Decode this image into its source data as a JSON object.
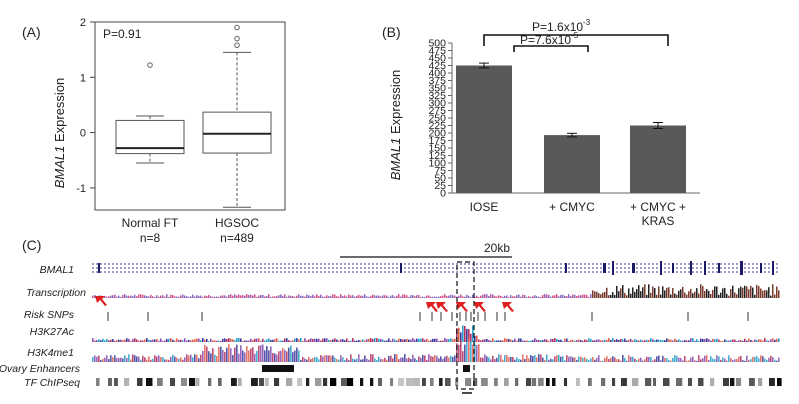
{
  "panels": {
    "A": {
      "label": "(A)",
      "pvalue": "P=0.91",
      "ylabel_gene": "BMAL1",
      "ylabel_rest": " Expression",
      "ytick_labels": [
        "2",
        "1",
        "0",
        "-1"
      ],
      "groups": [
        {
          "name": "Normal FT",
          "n": "n=8"
        },
        {
          "name": "HGSOC",
          "n": "n=489"
        }
      ]
    },
    "B": {
      "label": "(B)",
      "ylabel_gene": "BMAL1",
      "ylabel_rest": " Expression",
      "brackets": [
        {
          "text": "P=7.6x10",
          "exp": "-5"
        },
        {
          "text": "P=1.6x10",
          "exp": "-3"
        }
      ],
      "categories": [
        "IOSE",
        "+ CMYC",
        "+ CMYC +",
        "KRAS"
      ]
    },
    "C": {
      "label": "(C)",
      "scale_label": "20kb",
      "tracks": [
        "BMAL1",
        "Transcription",
        "Risk SNPs",
        "H3K27Ac",
        "H3K4me1",
        "Ovary Enhancers",
        "TF ChIPseq"
      ]
    }
  },
  "chart_data": [
    {
      "type": "box",
      "title": "",
      "ylabel": "BMAL1 Expression",
      "ylim": [
        -1.4,
        2
      ],
      "yticks": [
        -1,
        0,
        1,
        2
      ],
      "annotation": "P=0.91",
      "groups": [
        {
          "name": "Normal FT",
          "n": 8,
          "min": -0.55,
          "q1": -0.38,
          "median": -0.28,
          "q3": 0.22,
          "max": 0.3,
          "outliers": [
            1.22
          ]
        },
        {
          "name": "HGSOC",
          "n": 489,
          "min": -1.35,
          "q1": -0.37,
          "median": -0.02,
          "q3": 0.37,
          "max": 1.45,
          "outliers": [
            1.58,
            1.7,
            1.9
          ]
        }
      ]
    },
    {
      "type": "bar",
      "title": "",
      "ylabel": "BMAL1 Expression",
      "ylim": [
        0,
        500
      ],
      "yticks": [
        0,
        25,
        50,
        75,
        100,
        125,
        150,
        175,
        200,
        225,
        250,
        275,
        300,
        325,
        350,
        375,
        400,
        425,
        450,
        475,
        500
      ],
      "categories": [
        "IOSE",
        "+ CMYC",
        "+ CMYC + KRAS"
      ],
      "values": [
        425,
        193,
        225
      ],
      "errors": [
        8,
        6,
        10
      ],
      "color": "#595959",
      "annotations": [
        {
          "between": [
            "IOSE",
            "+ CMYC"
          ],
          "text": "P=7.6x10-5"
        },
        {
          "between": [
            "IOSE",
            "+ CMYC + KRAS"
          ],
          "text": "P=1.6x10-3"
        }
      ]
    }
  ]
}
